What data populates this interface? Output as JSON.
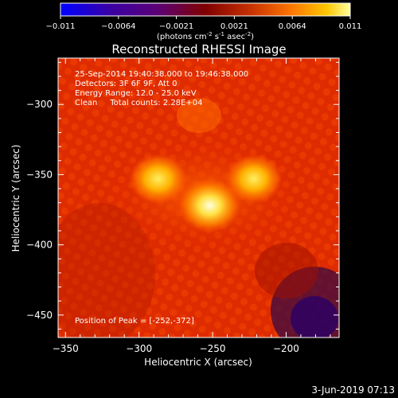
{
  "colorbar": {
    "ticks": [
      "-0.011",
      "-0.0064",
      "-0.0021",
      "0.0021",
      "0.0064",
      "0.011"
    ],
    "unit_main": "(photons cm",
    "unit_exp1": "-2",
    "unit_mid": " s",
    "unit_exp2": "-1",
    "unit_mid2": " asec",
    "unit_exp3": "-2",
    "unit_close": ")",
    "colors": [
      "#0000ff",
      "#3c00a0",
      "#5a0078",
      "#800000",
      "#c83200",
      "#ff7800",
      "#ffc800",
      "#ffffa0"
    ]
  },
  "chart_data": {
    "type": "heatmap",
    "title": "Reconstructed RHESSI Image",
    "xlabel": "Heliocentric X (arcsec)",
    "ylabel": "Heliocentric Y (arcsec)",
    "xlim": [
      -355,
      -164
    ],
    "ylim": [
      -466,
      -267
    ],
    "x_ticks": [
      {
        "value": -350,
        "label": "−350"
      },
      {
        "value": -300,
        "label": "−300"
      },
      {
        "value": -250,
        "label": "−250"
      },
      {
        "value": -200,
        "label": "−200"
      }
    ],
    "y_ticks": [
      {
        "value": -300,
        "label": "−300"
      },
      {
        "value": -350,
        "label": "−350"
      },
      {
        "value": -400,
        "label": "−400"
      },
      {
        "value": -450,
        "label": "−450"
      }
    ],
    "sources": [
      {
        "x": -252,
        "y": -372,
        "intensity": 1.0
      },
      {
        "x": -287,
        "y": -353,
        "intensity": 0.85
      },
      {
        "x": -222,
        "y": -353,
        "intensity": 0.8
      }
    ],
    "peak": [
      -252,
      -372
    ],
    "info_lines": [
      "25-Sep-2014 19:40:38.000 to 19:46:38.000",
      "Detectors: 3F 6F 9F, Att 0",
      "Energy Range: 12.0 - 25.0 keV",
      "Clean     Total counts: 2.28E+04"
    ],
    "peak_label": "Position of Peak = [-252,-372]"
  },
  "footer": {
    "date": "3-Jun-2019 07:13"
  }
}
